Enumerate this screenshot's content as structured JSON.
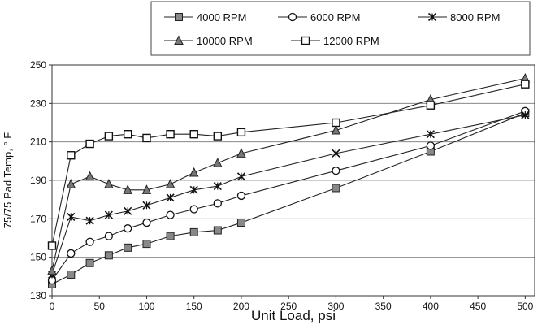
{
  "chart_data": {
    "type": "line",
    "title": "",
    "xlabel": "Unit Load, psi",
    "ylabel": "75/75 Pad Temp, ° F",
    "xlim": [
      0,
      510
    ],
    "ylim": [
      130,
      250
    ],
    "xticks": [
      0,
      50,
      100,
      150,
      200,
      250,
      300,
      350,
      400,
      450,
      500
    ],
    "yticks": [
      130,
      150,
      170,
      190,
      210,
      230,
      250
    ],
    "grid": "horizontal",
    "legend_position": "top",
    "series": [
      {
        "name": "4000 RPM",
        "marker": "filled-square",
        "x": [
          0,
          20,
          40,
          60,
          80,
          100,
          125,
          150,
          175,
          200,
          300,
          400,
          500
        ],
        "y": [
          136,
          141,
          147,
          151,
          155,
          157,
          161,
          163,
          164,
          168,
          186,
          205,
          225
        ]
      },
      {
        "name": "6000 RPM",
        "marker": "circle",
        "x": [
          0,
          20,
          40,
          60,
          80,
          100,
          125,
          150,
          175,
          200,
          300,
          400,
          500
        ],
        "y": [
          138,
          152,
          158,
          161,
          165,
          168,
          172,
          175,
          178,
          182,
          195,
          208,
          226
        ]
      },
      {
        "name": "8000 RPM",
        "marker": "x",
        "x": [
          0,
          20,
          40,
          60,
          80,
          100,
          125,
          150,
          175,
          200,
          300,
          400,
          500
        ],
        "y": [
          141,
          171,
          169,
          172,
          174,
          177,
          181,
          185,
          187,
          192,
          204,
          214,
          224
        ]
      },
      {
        "name": "10000 RPM",
        "marker": "triangle",
        "x": [
          0,
          20,
          40,
          60,
          80,
          100,
          125,
          150,
          175,
          200,
          300,
          400,
          500
        ],
        "y": [
          143,
          188,
          192,
          188,
          185,
          185,
          188,
          194,
          199,
          204,
          216,
          232,
          243
        ]
      },
      {
        "name": "12000 RPM",
        "marker": "open-square",
        "x": [
          0,
          20,
          40,
          60,
          80,
          100,
          125,
          150,
          175,
          200,
          300,
          400,
          500
        ],
        "y": [
          156,
          203,
          209,
          213,
          214,
          212,
          214,
          214,
          213,
          215,
          220,
          229,
          240
        ]
      }
    ]
  }
}
